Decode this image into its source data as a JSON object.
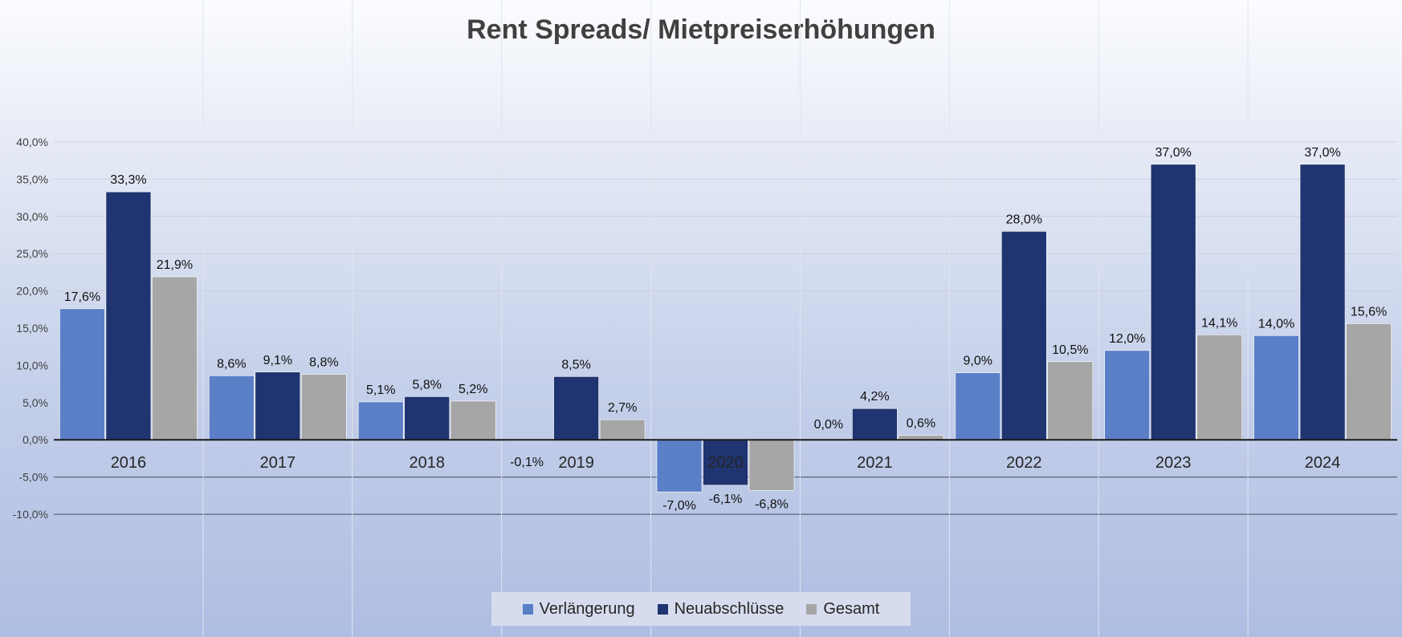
{
  "chart_data": {
    "type": "bar",
    "title": "Rent Spreads/ Mietpreiserhöhungen",
    "categories": [
      "2016",
      "2017",
      "2018",
      "2019",
      "2020",
      "2021",
      "2022",
      "2023",
      "2024"
    ],
    "series": [
      {
        "name": "Verlängerung",
        "color": "#5b7fc7",
        "values": [
          17.6,
          8.6,
          5.1,
          -0.1,
          -7.0,
          0.0,
          9.0,
          12.0,
          14.0
        ],
        "labels": [
          "17,6%",
          "8,6%",
          "5,1%",
          "-0,1%",
          "-7,0%",
          "0,0%",
          "9,0%",
          "12,0%",
          "14,0%"
        ]
      },
      {
        "name": "Neuabschlüsse",
        "color": "#1f3470",
        "values": [
          33.3,
          9.1,
          5.8,
          8.5,
          -6.1,
          4.2,
          28.0,
          37.0,
          37.0
        ],
        "labels": [
          "33,3%",
          "9,1%",
          "5,8%",
          "8,5%",
          "-6,1%",
          "4,2%",
          "28,0%",
          "37,0%",
          "37,0%"
        ]
      },
      {
        "name": "Gesamt",
        "color": "#a6a6a6",
        "values": [
          21.9,
          8.8,
          5.2,
          2.7,
          -6.8,
          0.6,
          10.5,
          14.1,
          15.6
        ],
        "labels": [
          "21,9%",
          "8,8%",
          "5,2%",
          "2,7%",
          "-6,8%",
          "0,6%",
          "10,5%",
          "14,1%",
          "15,6%"
        ]
      }
    ],
    "ylim": [
      -10,
      40
    ],
    "yticks": [
      40,
      35,
      30,
      25,
      20,
      15,
      10,
      5,
      0,
      -5,
      -10
    ],
    "ytick_labels": [
      "40,0%",
      "35,0%",
      "30,0%",
      "25,0%",
      "20,0%",
      "15,0%",
      "10,0%",
      "5,0%",
      "0,0%",
      "-5,0%",
      "-10,0%"
    ],
    "grid": true,
    "legend_position": "bottom"
  }
}
